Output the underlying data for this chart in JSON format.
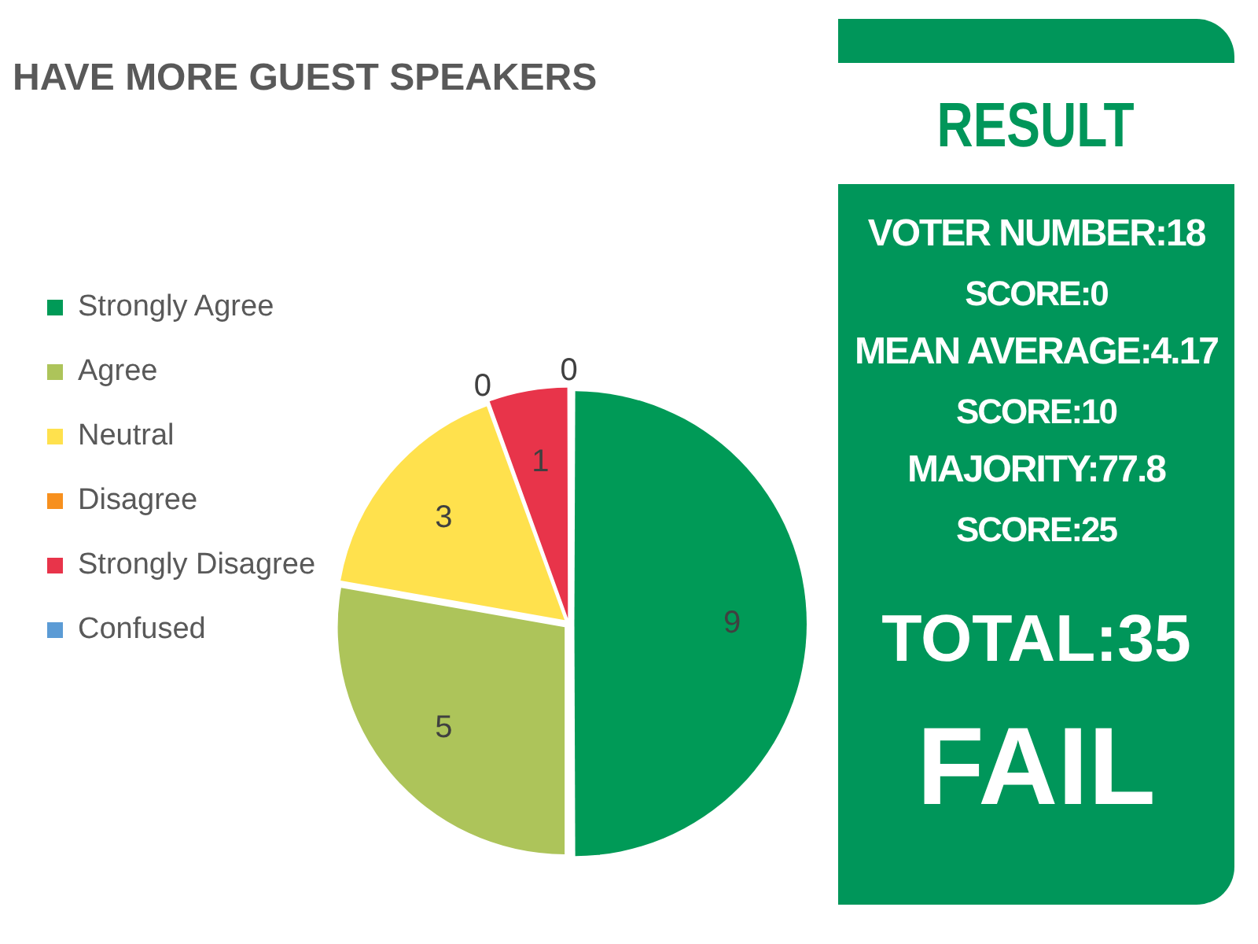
{
  "chart_data": [
    {
      "type": "pie",
      "title": "HAVE MORE GUEST SPEAKERS",
      "categories": [
        "Strongly Agree",
        "Agree",
        "Neutral",
        "Disagree",
        "Strongly Disagree",
        "Confused"
      ],
      "values": [
        9,
        5,
        3,
        0,
        1,
        0
      ],
      "colors": [
        "#009a57",
        "#adc45a",
        "#ffe14d",
        "#f7901e",
        "#e8344a",
        "#5b9bd5"
      ],
      "value_labels": [
        "9",
        "5",
        "3",
        "0",
        "1",
        "0"
      ],
      "legend": "left"
    },
    {
      "type": "other",
      "title": "RESULT",
      "annotations": [
        "VOTER NUMBER:18",
        "SCORE:0",
        "MEAN AVERAGE:4.17",
        "SCORE:10",
        "MAJORITY:77.8",
        "SCORE:25",
        "TOTAL:35",
        "FAIL"
      ]
    }
  ]
}
